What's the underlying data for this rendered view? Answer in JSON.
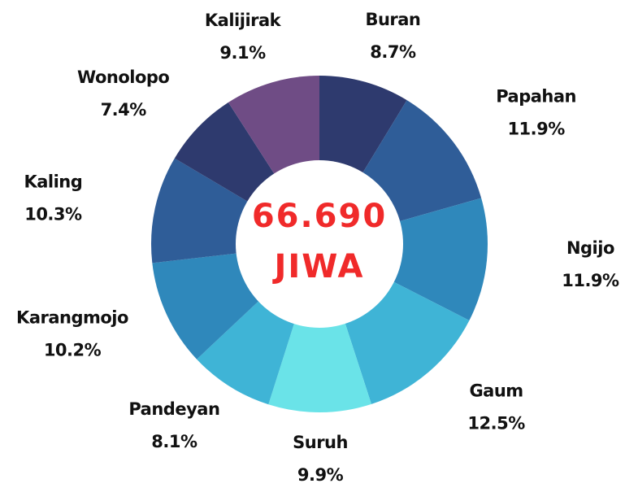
{
  "chart_data": {
    "type": "donut",
    "center_text": [
      "66.690",
      "JIWA"
    ],
    "categories": [
      "Buran",
      "Papahan",
      "Ngijo",
      "Gaum",
      "Suruh",
      "Pandeyan",
      "Karangmojo",
      "Kaling",
      "Wonolopo",
      "Kalijirak"
    ],
    "values": [
      8.7,
      11.9,
      11.9,
      12.5,
      9.9,
      8.1,
      10.2,
      10.3,
      7.4,
      9.1
    ],
    "value_labels": [
      "8.7%",
      "11.9%",
      "11.9%",
      "12.5%",
      "9.9%",
      "8.1%",
      "10.2%",
      "10.3%",
      "7.4%",
      "9.1%"
    ],
    "colors": [
      "#2e3a6e",
      "#2f5d98",
      "#2f88bb",
      "#3fb4d6",
      "#6ae3e8",
      "#3fb4d6",
      "#2f88bb",
      "#2f5d98",
      "#2e3a6e",
      "#6f4c85"
    ]
  }
}
